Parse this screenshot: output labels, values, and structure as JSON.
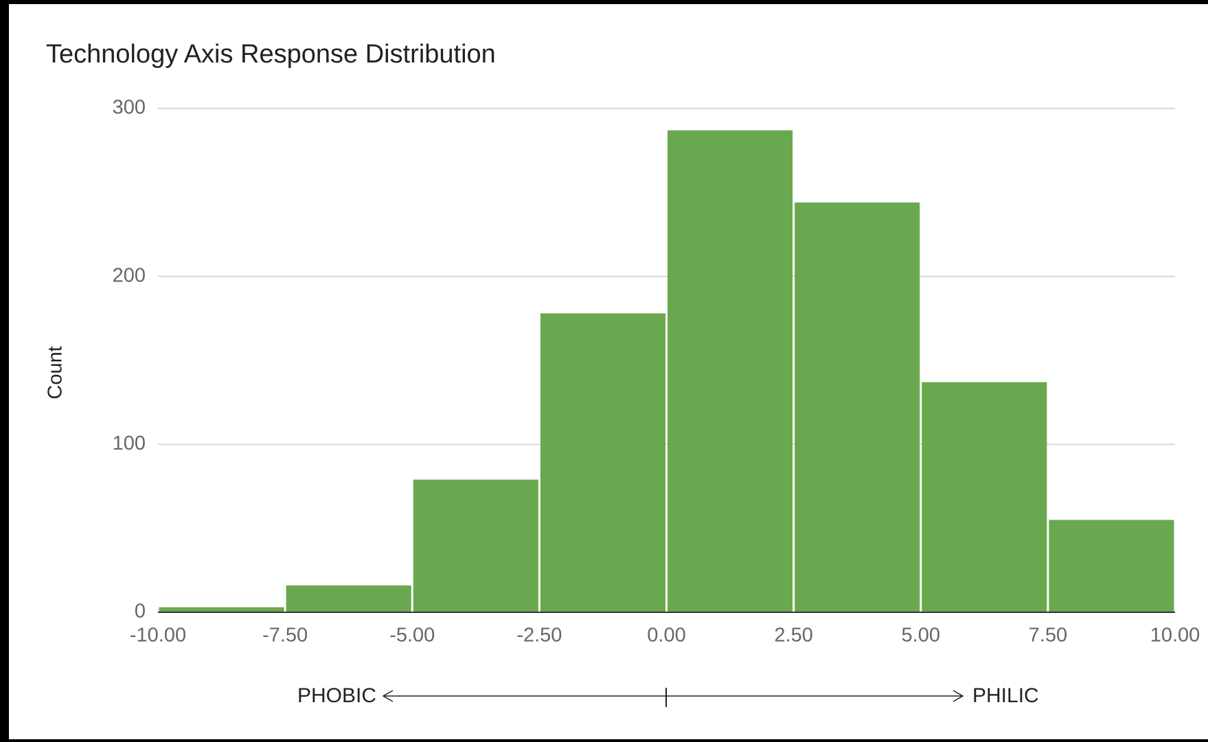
{
  "chart_data": {
    "type": "histogram",
    "title": "Technology Axis Response Distribution",
    "y_label": "Count",
    "annotation_left": "PHOBIC",
    "annotation_right": "PHILIC",
    "bins": [
      -10,
      -7.5,
      -5,
      -2.5,
      0,
      2.5,
      5,
      7.5,
      10
    ],
    "values": [
      3,
      16,
      79,
      178,
      287,
      244,
      137,
      55
    ],
    "color": "#6aa84f",
    "xlim": [
      -10,
      10
    ],
    "xticks": [
      {
        "value": -10,
        "label": "-10.00"
      },
      {
        "value": -7.5,
        "label": "-7.50"
      },
      {
        "value": -5,
        "label": "-5.00"
      },
      {
        "value": -2.5,
        "label": "-2.50"
      },
      {
        "value": 0,
        "label": "0.00"
      },
      {
        "value": 2.5,
        "label": "2.50"
      },
      {
        "value": 5,
        "label": "5.00"
      },
      {
        "value": 7.5,
        "label": "7.50"
      },
      {
        "value": 10,
        "label": "10.00"
      }
    ],
    "ylim": [
      0,
      300
    ],
    "yticks": [
      0,
      100,
      200,
      300
    ],
    "grid": true
  }
}
